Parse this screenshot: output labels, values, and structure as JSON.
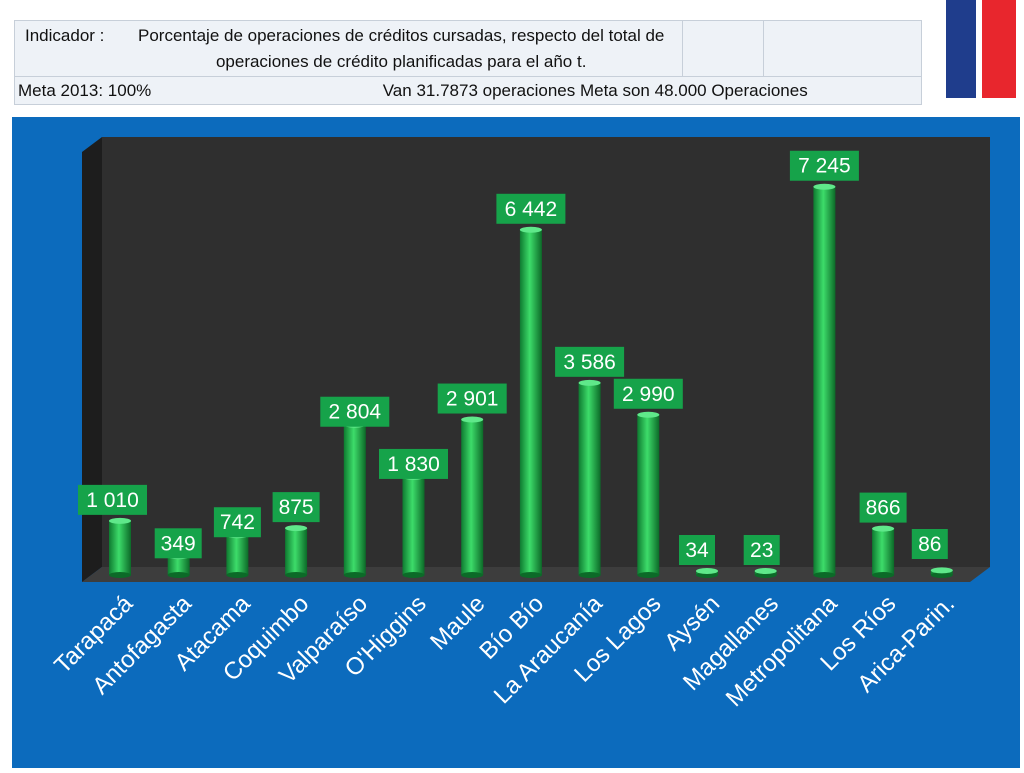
{
  "header": {
    "indicator_label": "Indicador :",
    "indicator_text": "Porcentaje de operaciones de créditos cursadas, respecto del total de operaciones de crédito planificadas para el año t.",
    "meta_text": "Meta 2013: 100%",
    "progress_text": "Van 31.7873 operaciones  Meta son 48.000 Operaciones"
  },
  "colors": {
    "bar": "#22b14c",
    "label_bg": "#16a34a",
    "chart_bg": "#0c6bbd",
    "plot_bg": "#2f2f2f"
  },
  "chart_data": {
    "type": "bar",
    "title": "",
    "xlabel": "",
    "ylabel": "",
    "ylim": [
      0,
      7800
    ],
    "categories": [
      "Tarapacá",
      "Antofagasta",
      "Atacama",
      "Coquimbo",
      "Valparaíso",
      "O'Higgins",
      "Maule",
      "Bío Bío",
      "La Araucanía",
      "Los Lagos",
      "Aysén",
      "Magallanes",
      "Metropolitana",
      "Los Ríos",
      "Arica-Parin."
    ],
    "values": [
      1010,
      349,
      742,
      875,
      2804,
      1830,
      2901,
      6442,
      3586,
      2990,
      34,
      23,
      7245,
      866,
      86
    ],
    "data_labels": [
      "1 010",
      "349",
      "742",
      "875",
      "2 804",
      "1 830",
      "2 901",
      "6 442",
      "3 586",
      "2 990",
      "34",
      "23",
      "7 245",
      "866",
      "86"
    ]
  }
}
